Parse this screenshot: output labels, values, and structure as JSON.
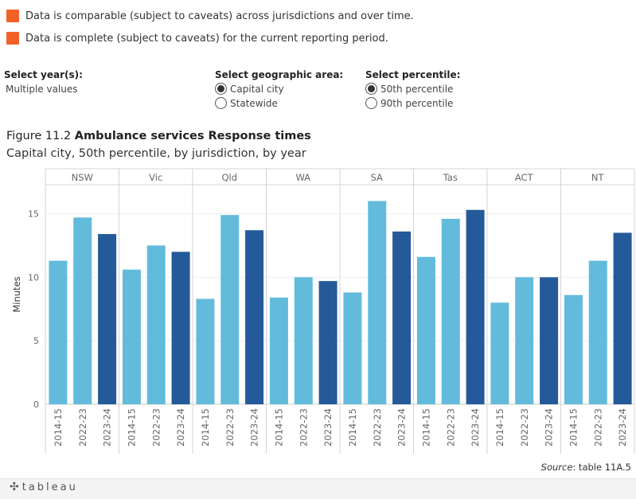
{
  "legend": [
    {
      "text": "Data is comparable (subject to caveats) across jurisdictions and over time.",
      "color": "#f26226"
    },
    {
      "text": "Data is complete (subject to caveats) for the current reporting period.",
      "color": "#f26226"
    }
  ],
  "controls": {
    "year": {
      "label": "Select year(s):",
      "value": "Multiple values"
    },
    "area": {
      "label": "Select geographic area:",
      "options": [
        {
          "text": "Capital city",
          "selected": true
        },
        {
          "text": "Statewide",
          "selected": false
        }
      ]
    },
    "percentile": {
      "label": "Select percentile:",
      "options": [
        {
          "text": "50th percentile",
          "selected": true
        },
        {
          "text": "90th percentile",
          "selected": false
        }
      ]
    }
  },
  "figure": {
    "number": "Figure 11.2",
    "title": "Ambulance services Response times",
    "subtitle": "Capital city, 50th percentile, by jurisdiction, by year"
  },
  "chart_data": {
    "type": "bar",
    "ylabel": "Minutes",
    "ylim": [
      0,
      17.1
    ],
    "yticks": [
      0,
      5,
      10,
      15
    ],
    "years": [
      "2014-15",
      "2022-23",
      "2023-24"
    ],
    "year_colors": [
      "#63bbdb",
      "#63bbdb",
      "#245a99"
    ],
    "panels": [
      {
        "jurisdiction": "NSW",
        "values": [
          11.3,
          14.7,
          13.4
        ]
      },
      {
        "jurisdiction": "Vic",
        "values": [
          10.6,
          12.5,
          12.0
        ]
      },
      {
        "jurisdiction": "Qld",
        "values": [
          8.3,
          14.9,
          13.7
        ]
      },
      {
        "jurisdiction": "WA",
        "values": [
          8.4,
          10.0,
          9.7
        ]
      },
      {
        "jurisdiction": "SA",
        "values": [
          8.8,
          16.0,
          13.6
        ]
      },
      {
        "jurisdiction": "Tas",
        "values": [
          11.6,
          14.6,
          15.3
        ]
      },
      {
        "jurisdiction": "ACT",
        "values": [
          8.0,
          10.0,
          10.0
        ]
      },
      {
        "jurisdiction": "NT",
        "values": [
          8.6,
          11.3,
          13.5
        ]
      }
    ],
    "grid": true
  },
  "source": {
    "label": "Source",
    "text": ": table 11A.5"
  },
  "footer": {
    "logo_text": "tableau",
    "logo_icon": "tableau-plus-icon"
  }
}
